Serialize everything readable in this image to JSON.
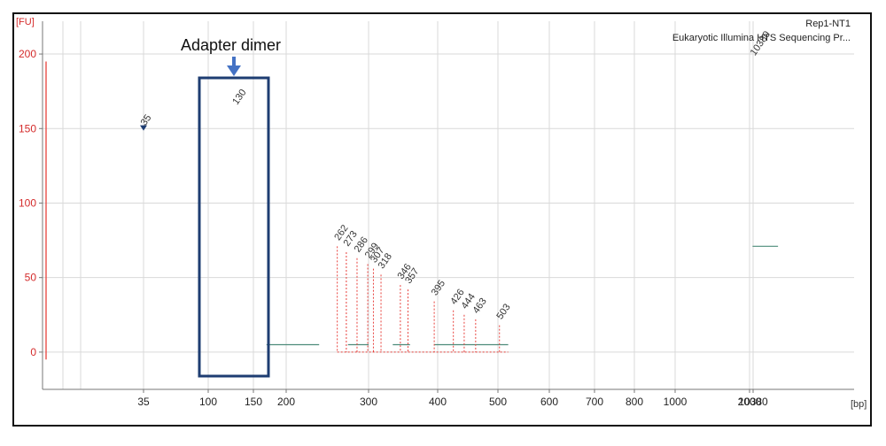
{
  "header": {
    "sample": "Rep1-NT1",
    "assay": "Eukaryotic Illumina HTS Sequencing Pr...",
    "y_unit": "[FU]",
    "x_unit": "[bp]"
  },
  "annotation": {
    "text": "Adapter dimer"
  },
  "colors": {
    "trace": "#e8413c",
    "box": "#1e3d72",
    "arrow": "#4472c4",
    "grid": "#d9d9d9",
    "baseline": "#4d8c7a"
  },
  "chart_data": {
    "type": "line",
    "title": "",
    "xlabel": "[bp]",
    "ylabel": "[FU]",
    "ylim": [
      -25,
      222
    ],
    "y_ticks": [
      0,
      50,
      100,
      150,
      200
    ],
    "x_tick_labels": [
      "35",
      "100",
      "150",
      "200",
      "300",
      "400",
      "500",
      "600",
      "700",
      "800",
      "1000",
      "2000",
      "10380"
    ],
    "series": [
      {
        "x": [
          "<35",
          "35",
          "35",
          "50",
          "100",
          "120",
          "130",
          "130",
          "140",
          "150",
          "160",
          "180",
          "200",
          "220",
          "240",
          "262",
          "273",
          "286",
          "299",
          "307",
          "318",
          "346",
          "357",
          "395",
          "426",
          "444",
          "463",
          "503",
          "600",
          "700",
          "800",
          "1000",
          "2000",
          "8000",
          "10380",
          "10380",
          "10380",
          "12000",
          "15000"
        ],
        "y": [
          2,
          2,
          148,
          2,
          1,
          1,
          2,
          162,
          2,
          1,
          1,
          5,
          35,
          60,
          68,
          71,
          67,
          63,
          59,
          56,
          52,
          45,
          42,
          34,
          28,
          25,
          22,
          18,
          10,
          7,
          5,
          3,
          2,
          3,
          20,
          195,
          20,
          8,
          -5
        ]
      }
    ],
    "peaks": [
      {
        "label": "35",
        "x": 35,
        "y": 148,
        "color": "#2e9a2e"
      },
      {
        "label": "130",
        "x": 130,
        "y": 162,
        "color": "#333333"
      },
      {
        "label": "262",
        "x": 262,
        "y": 71
      },
      {
        "label": "273",
        "x": 273,
        "y": 67
      },
      {
        "label": "286",
        "x": 286,
        "y": 63
      },
      {
        "label": "299",
        "x": 299,
        "y": 59
      },
      {
        "label": "307",
        "x": 307,
        "y": 56
      },
      {
        "label": "318",
        "x": 318,
        "y": 52
      },
      {
        "label": "346",
        "x": 346,
        "y": 45
      },
      {
        "label": "357",
        "x": 357,
        "y": 42
      },
      {
        "label": "395",
        "x": 395,
        "y": 34
      },
      {
        "label": "426",
        "x": 426,
        "y": 28
      },
      {
        "label": "444",
        "x": 444,
        "y": 25
      },
      {
        "label": "463",
        "x": 463,
        "y": 22
      },
      {
        "label": "503",
        "x": 503,
        "y": 18
      },
      {
        "label": "10380",
        "x": 10380,
        "y": 195,
        "color": "#9a3fd8"
      }
    ],
    "grid": true,
    "legend": "none"
  }
}
